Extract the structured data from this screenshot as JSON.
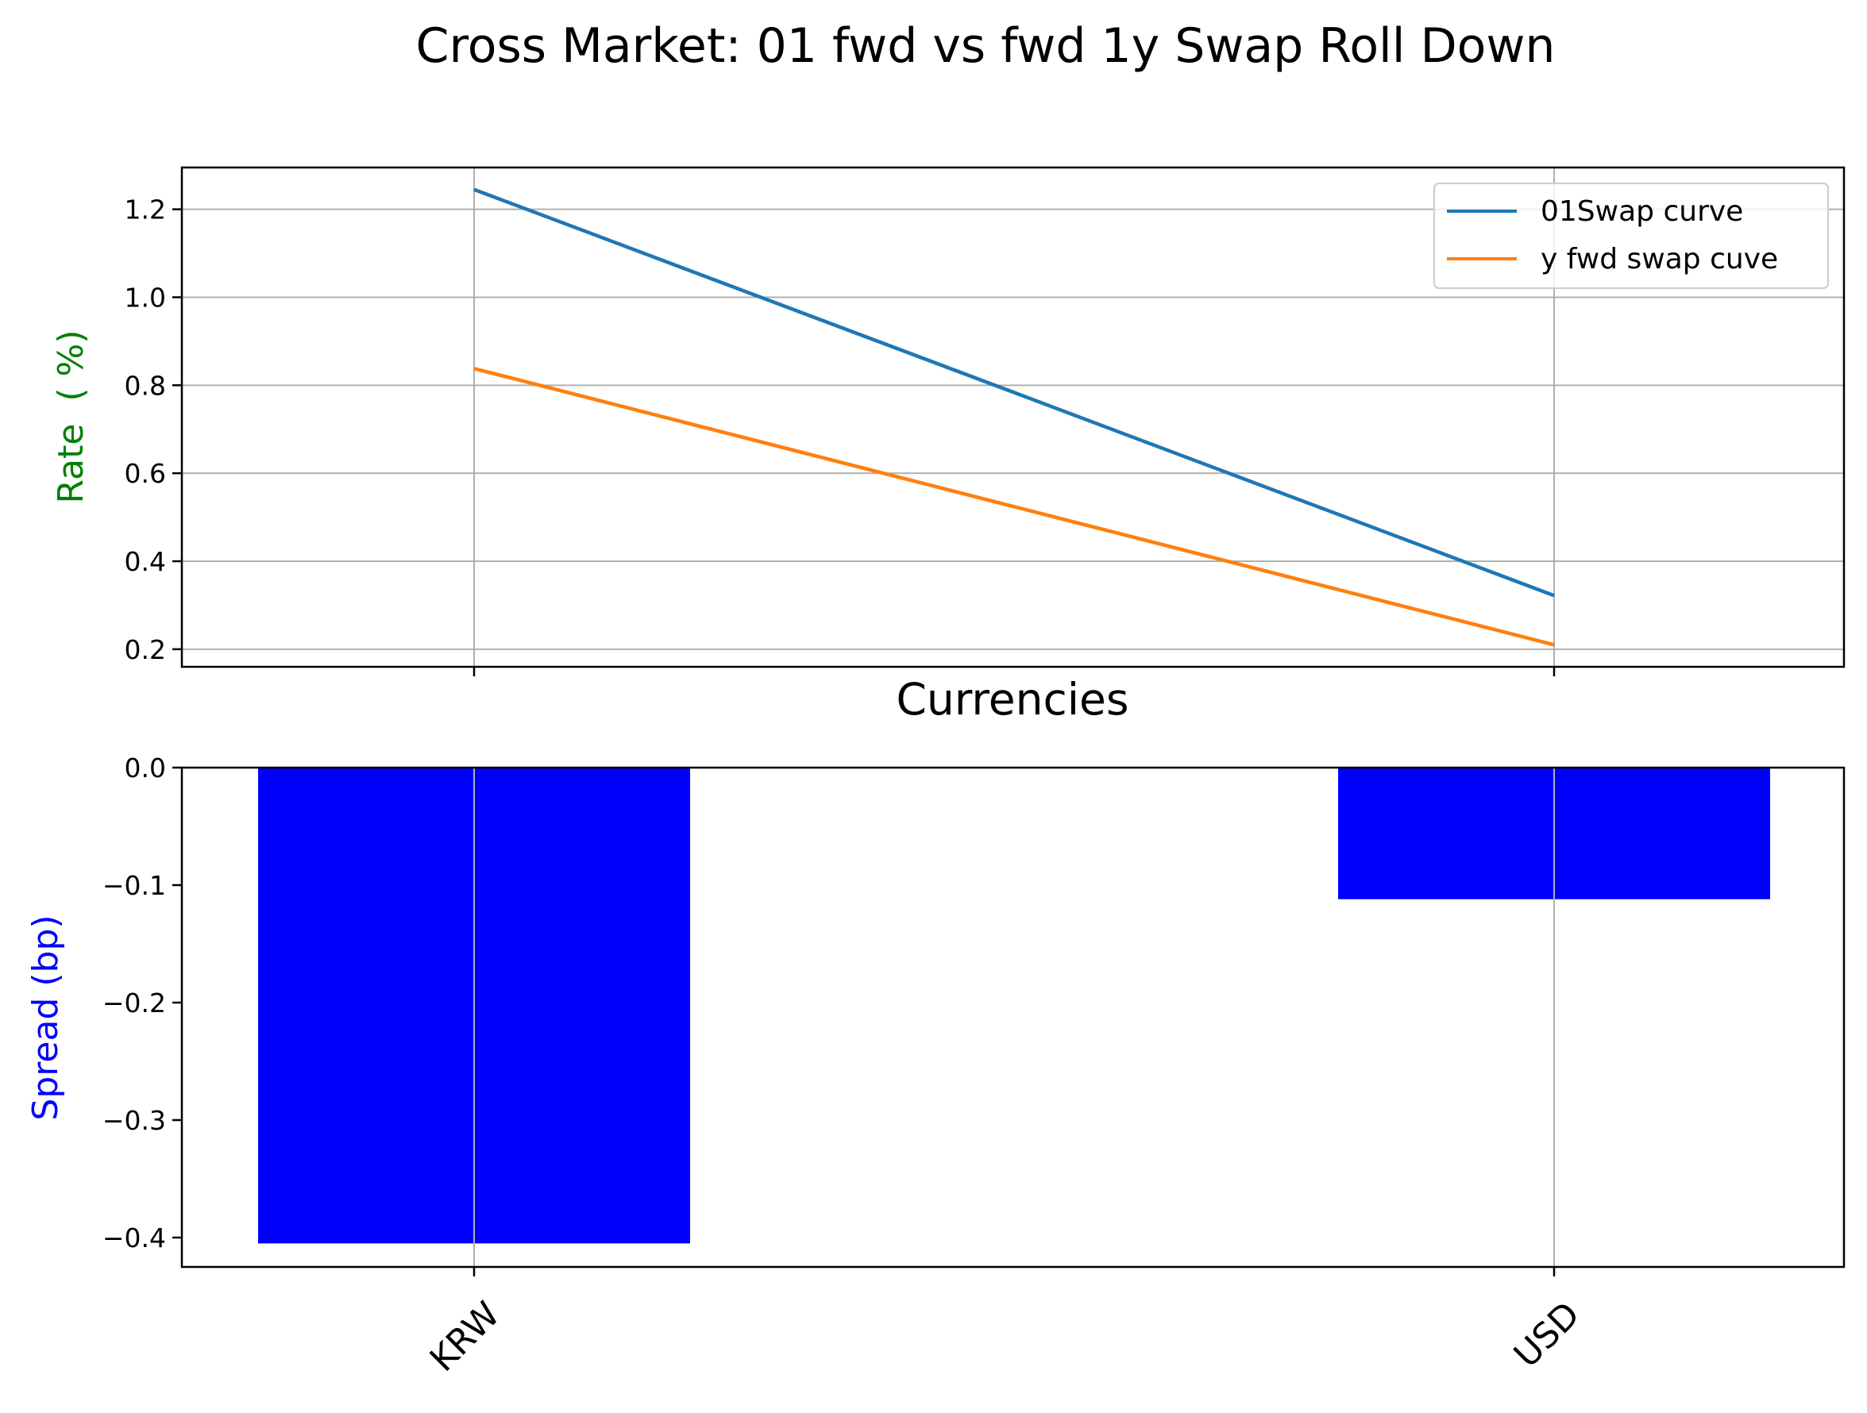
{
  "title": "Cross Market: 01 fwd vs  fwd 1y Swap Roll Down",
  "chart_data": [
    {
      "type": "line",
      "categories": [
        "KRW",
        "USD"
      ],
      "series": [
        {
          "name": "01Swap curve",
          "values": [
            1.245,
            0.322
          ],
          "color": "#1f77b4"
        },
        {
          "name": "y fwd swap cuve",
          "values": [
            0.838,
            0.21
          ],
          "color": "#ff7f0e"
        }
      ],
      "xlabel": "Currencies",
      "ylabel": "Rate  ( %)",
      "ylabel_color": "#008000",
      "ylim": [
        0.16,
        1.295
      ],
      "yticks": [
        "0.2",
        "0.4",
        "0.6",
        "0.8",
        "1.0",
        "1.2"
      ],
      "grid": true,
      "legend": "upper right"
    },
    {
      "type": "bar",
      "categories": [
        "KRW",
        "USD"
      ],
      "values": [
        -0.405,
        -0.112
      ],
      "bar_color": "#0000ff",
      "ylabel": "Spread (bp)",
      "ylabel_color": "#0000ff",
      "ylim": [
        -0.425,
        0.0
      ],
      "yticks": [
        "0.0",
        "−0.1",
        "−0.2",
        "−0.3",
        "−0.4"
      ],
      "grid": "x",
      "xtick_rotation": 45
    }
  ]
}
